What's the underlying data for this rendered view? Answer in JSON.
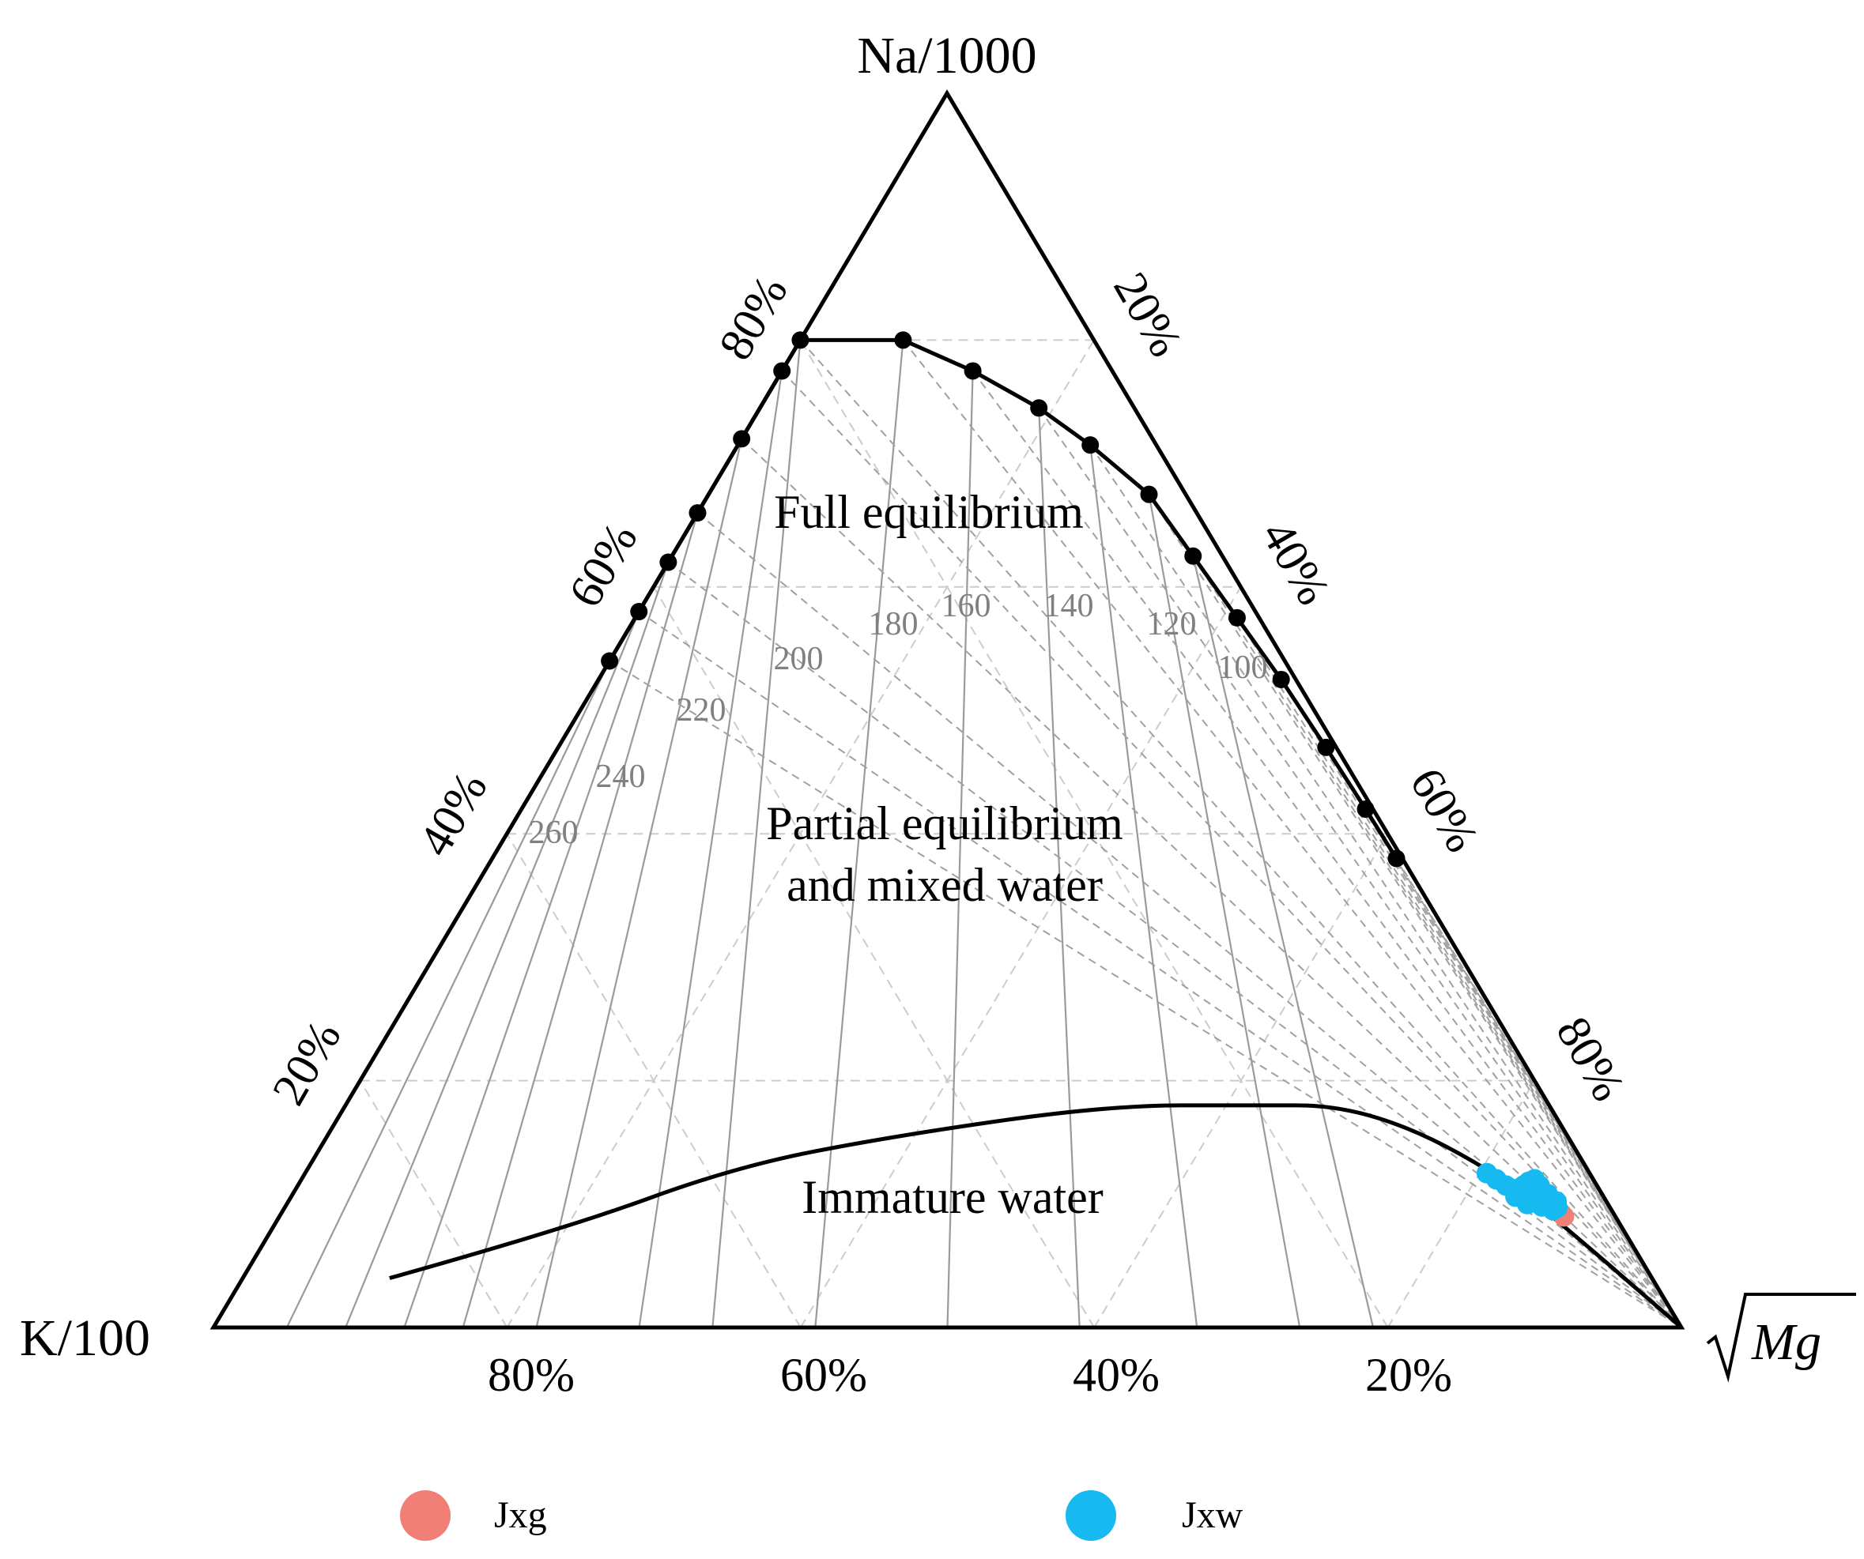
{
  "chart_data": {
    "type": "scatter",
    "subtype": "ternary",
    "title": "",
    "vertices": {
      "top": "Na/1000",
      "left": "K/100",
      "right": "√Mg"
    },
    "axis_ticks": {
      "left_edge": [
        "20%",
        "40%",
        "60%",
        "80%"
      ],
      "right_edge": [
        "20%",
        "40%",
        "60%",
        "80%"
      ],
      "bottom_edge": [
        "80%",
        "60%",
        "40%",
        "20%"
      ]
    },
    "grid": true,
    "grid_step_percent": 20,
    "regions": [
      {
        "id": "full",
        "label": "Full equilibrium"
      },
      {
        "id": "partial_line1",
        "label": "Partial equilibrium"
      },
      {
        "id": "partial_line2",
        "label": "and mixed water"
      },
      {
        "id": "immature",
        "label": "Immature water"
      }
    ],
    "temperature_labels": [
      "260",
      "240",
      "220",
      "200",
      "180",
      "160",
      "140",
      "120",
      "100"
    ],
    "full_equilibrium_curve": {
      "points_na_k": [
        [
          0.54,
          0.46
        ],
        [
          0.58,
          0.42
        ],
        [
          0.62,
          0.38
        ],
        [
          0.66,
          0.34
        ],
        [
          0.72,
          0.28
        ],
        [
          0.775,
          0.225
        ],
        [
          0.8,
          0.2
        ],
        [
          0.8,
          0.13
        ],
        [
          0.775,
          0.095
        ],
        [
          0.745,
          0.065
        ],
        [
          0.715,
          0.045
        ],
        [
          0.675,
          0.025
        ],
        [
          0.625,
          0.02
        ],
        [
          0.575,
          0.015
        ],
        [
          0.525,
          0.01
        ],
        [
          0.47,
          0.007
        ],
        [
          0.42,
          0.005
        ],
        [
          0.38,
          0.004
        ]
      ]
    },
    "immature_boundary": {
      "points_na_k": [
        [
          0.04,
          0.86
        ],
        [
          0.08,
          0.72
        ],
        [
          0.13,
          0.58
        ],
        [
          0.155,
          0.46
        ],
        [
          0.18,
          0.3
        ],
        [
          0.18,
          0.2
        ],
        [
          0.18,
          0.145
        ],
        [
          0.16,
          0.1
        ],
        [
          0.12,
          0.06
        ],
        [
          0.085,
          0.04
        ],
        [
          0.0,
          0.0
        ]
      ]
    },
    "legend": {
      "placement": "bottom",
      "entries": [
        {
          "name": "Jxg",
          "color": "#F08076"
        },
        {
          "name": "Jxw",
          "color": "#16B9F0"
        }
      ]
    },
    "series": [
      {
        "name": "Jxg",
        "color": "#F08076",
        "points_na_k": [
          [
            0.09,
            0.035
          ]
        ]
      },
      {
        "name": "Jxw",
        "color": "#16B9F0",
        "points_na_k": [
          [
            0.125,
            0.07
          ],
          [
            0.12,
            0.066
          ],
          [
            0.115,
            0.062
          ],
          [
            0.112,
            0.058
          ],
          [
            0.115,
            0.05
          ],
          [
            0.118,
            0.045
          ],
          [
            0.112,
            0.043
          ],
          [
            0.108,
            0.045
          ],
          [
            0.102,
            0.048
          ],
          [
            0.098,
            0.046
          ],
          [
            0.103,
            0.04
          ],
          [
            0.108,
            0.037
          ],
          [
            0.102,
            0.034
          ],
          [
            0.097,
            0.036
          ],
          [
            0.095,
            0.04
          ],
          [
            0.115,
            0.039
          ],
          [
            0.12,
            0.04
          ],
          [
            0.11,
            0.052
          ],
          [
            0.106,
            0.06
          ],
          [
            0.1,
            0.055
          ]
        ]
      }
    ]
  }
}
